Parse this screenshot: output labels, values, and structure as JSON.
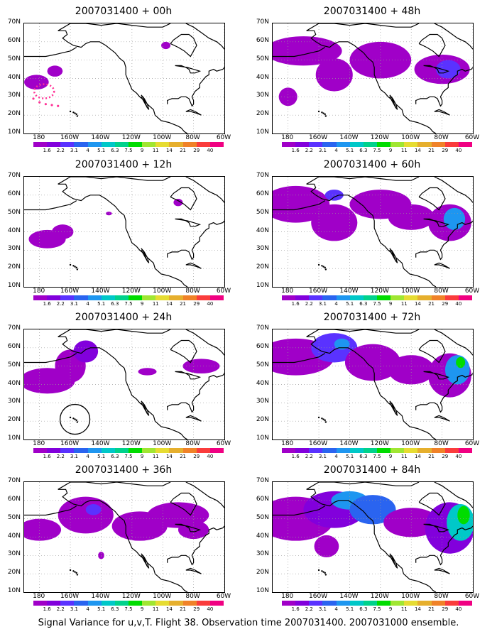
{
  "caption": "Signal Variance for u,v,T. Flight 38. Observation time 2007031400. 2007031000 ensemble.",
  "lat_labels": [
    "70N",
    "60N",
    "50N",
    "40N",
    "30N",
    "20N",
    "10N"
  ],
  "lon_labels": [
    "180",
    "160W",
    "140W",
    "120W",
    "100W",
    "80W",
    "60W"
  ],
  "colorbar": {
    "labels": [
      "1.6",
      "2.2",
      "3.1",
      "4",
      "5.1",
      "6.3",
      "7.5",
      "9",
      "11",
      "14",
      "21",
      "29",
      "40"
    ],
    "colors": [
      "#a000c8",
      "#8200dc",
      "#5a32ff",
      "#2a64f0",
      "#1e96f0",
      "#00c8c8",
      "#00d28c",
      "#00dc00",
      "#a0e632",
      "#e6dc32",
      "#e6af2d",
      "#f08228",
      "#fa3c3c",
      "#f00082"
    ]
  },
  "panels": [
    {
      "id": "p00",
      "title": "2007031400 + 00h",
      "lead_hours": 0,
      "signal": "weak",
      "marker": "dotted-pink-track"
    },
    {
      "id": "p12",
      "title": "2007031400 + 12h",
      "lead_hours": 12,
      "signal": "weak",
      "marker": "none"
    },
    {
      "id": "p24",
      "title": "2007031400 + 24h",
      "lead_hours": 24,
      "signal": "weak-moderate",
      "marker": "black-circle-hawaii"
    },
    {
      "id": "p36",
      "title": "2007031400 + 36h",
      "lead_hours": 36,
      "signal": "moderate",
      "marker": "none"
    },
    {
      "id": "p48",
      "title": "2007031400 + 48h",
      "lead_hours": 48,
      "signal": "moderate",
      "marker": "none"
    },
    {
      "id": "p60",
      "title": "2007031400 + 60h",
      "lead_hours": 60,
      "signal": "moderate-strong",
      "marker": "none"
    },
    {
      "id": "p72",
      "title": "2007031400 + 72h",
      "lead_hours": 72,
      "signal": "strong",
      "marker": "none"
    },
    {
      "id": "p84",
      "title": "2007031400 + 84h",
      "lead_hours": 84,
      "signal": "strongest",
      "marker": "none"
    }
  ]
}
